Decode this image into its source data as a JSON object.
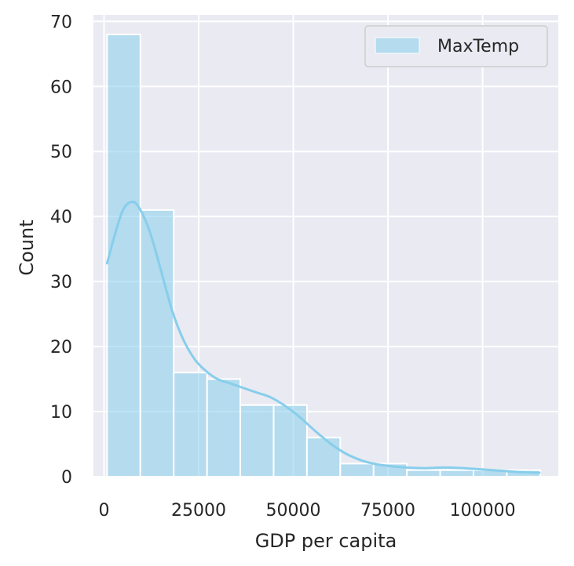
{
  "chart_data": {
    "type": "histogram",
    "xlabel": "GDP per capita",
    "ylabel": "Count",
    "xlim": [
      -2800,
      120000
    ],
    "ylim": [
      0,
      71
    ],
    "xticks": [
      0,
      25000,
      50000,
      75000,
      100000
    ],
    "yticks": [
      0,
      10,
      20,
      30,
      40,
      50,
      60,
      70
    ],
    "grid": true,
    "legend_position": "top-right",
    "series": [
      {
        "name": "MaxTemp",
        "color": "#87ceeb",
        "bins": [
          {
            "start": 800,
            "end": 9600,
            "count": 68
          },
          {
            "start": 9600,
            "end": 18400,
            "count": 41
          },
          {
            "start": 18400,
            "end": 27200,
            "count": 16
          },
          {
            "start": 27200,
            "end": 36000,
            "count": 15
          },
          {
            "start": 36000,
            "end": 44800,
            "count": 11
          },
          {
            "start": 44800,
            "end": 53600,
            "count": 11
          },
          {
            "start": 53600,
            "end": 62400,
            "count": 6
          },
          {
            "start": 62400,
            "end": 71200,
            "count": 2
          },
          {
            "start": 71200,
            "end": 80000,
            "count": 2
          },
          {
            "start": 80000,
            "end": 88800,
            "count": 1
          },
          {
            "start": 88800,
            "end": 97600,
            "count": 1
          },
          {
            "start": 97600,
            "end": 106400,
            "count": 1
          },
          {
            "start": 106400,
            "end": 115200,
            "count": 1
          }
        ],
        "kde": [
          [
            800,
            32.8
          ],
          [
            3000,
            37.5
          ],
          [
            5000,
            41.0
          ],
          [
            7000,
            42.2
          ],
          [
            9000,
            41.6
          ],
          [
            12000,
            37.8
          ],
          [
            15000,
            31.8
          ],
          [
            18000,
            25.5
          ],
          [
            21000,
            21.0
          ],
          [
            24000,
            18.0
          ],
          [
            27000,
            16.2
          ],
          [
            30000,
            15.0
          ],
          [
            33000,
            14.4
          ],
          [
            36000,
            13.8
          ],
          [
            40000,
            13.0
          ],
          [
            44000,
            12.2
          ],
          [
            48000,
            10.8
          ],
          [
            52000,
            9.0
          ],
          [
            56000,
            6.9
          ],
          [
            60000,
            5.0
          ],
          [
            64000,
            3.5
          ],
          [
            68000,
            2.5
          ],
          [
            72000,
            1.9
          ],
          [
            76000,
            1.6
          ],
          [
            80000,
            1.4
          ],
          [
            85000,
            1.3
          ],
          [
            90000,
            1.4
          ],
          [
            95000,
            1.3
          ],
          [
            100000,
            1.1
          ],
          [
            105000,
            0.9
          ],
          [
            110000,
            0.7
          ],
          [
            115000,
            0.6
          ]
        ]
      }
    ]
  }
}
